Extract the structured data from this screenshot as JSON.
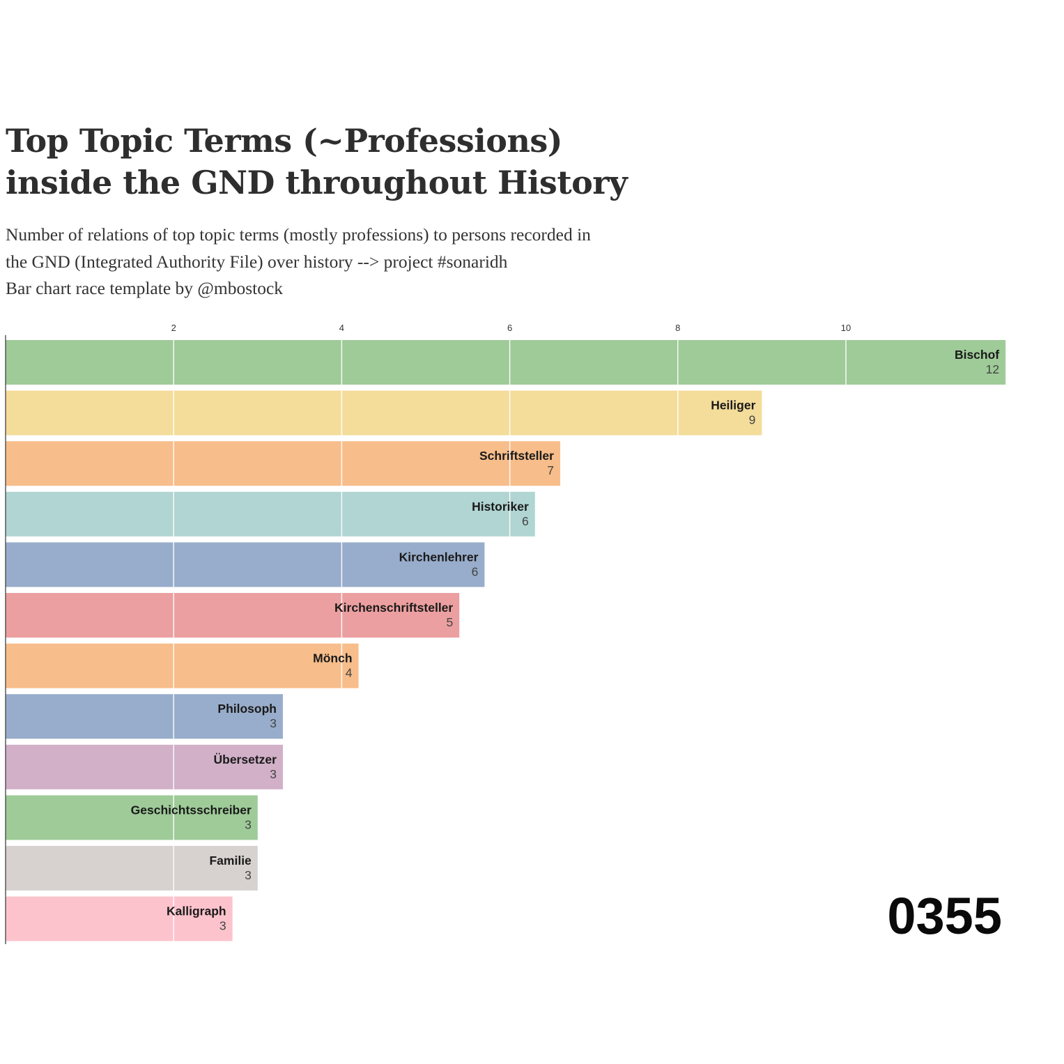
{
  "header": {
    "title": "Top Topic Terms (~Professions) inside the GND throughout History",
    "subtitle_lines": [
      "Number of relations of top topic terms (mostly professions) to persons recorded in",
      "the GND (Integrated Authority File) over history --> project #sonaridh",
      "Bar chart race template by @mbostock"
    ]
  },
  "chart_data": {
    "type": "bar",
    "orientation": "horizontal",
    "title": "Top Topic Terms (~Professions) inside the GND throughout History",
    "ticker": "0355",
    "xlim": [
      0,
      11.9
    ],
    "xticks": [
      2,
      4,
      6,
      8,
      10
    ],
    "grid": true,
    "categories": [
      "Bischof",
      "Heiliger",
      "Schriftsteller",
      "Historiker",
      "Kirchenlehrer",
      "Kirchenschriftsteller",
      "Mönch",
      "Philosoph",
      "Übersetzer",
      "Geschichtsschreiber",
      "Familie",
      "Kalligraph"
    ],
    "values": [
      11.9,
      9.0,
      6.6,
      6.3,
      5.7,
      5.4,
      4.2,
      3.3,
      3.3,
      3.0,
      3.0,
      2.7
    ],
    "value_labels": [
      "12",
      "9",
      "7",
      "6",
      "6",
      "5",
      "4",
      "3",
      "3",
      "3",
      "3",
      "3"
    ],
    "colors": [
      "#9ecb98",
      "#f4dc9a",
      "#f7bd8a",
      "#b0d5d2",
      "#98adcb",
      "#ec9fa0",
      "#f7bd8a",
      "#98adcb",
      "#d1b0c8",
      "#9ecb98",
      "#d7d2cf",
      "#fdc3cd"
    ]
  }
}
